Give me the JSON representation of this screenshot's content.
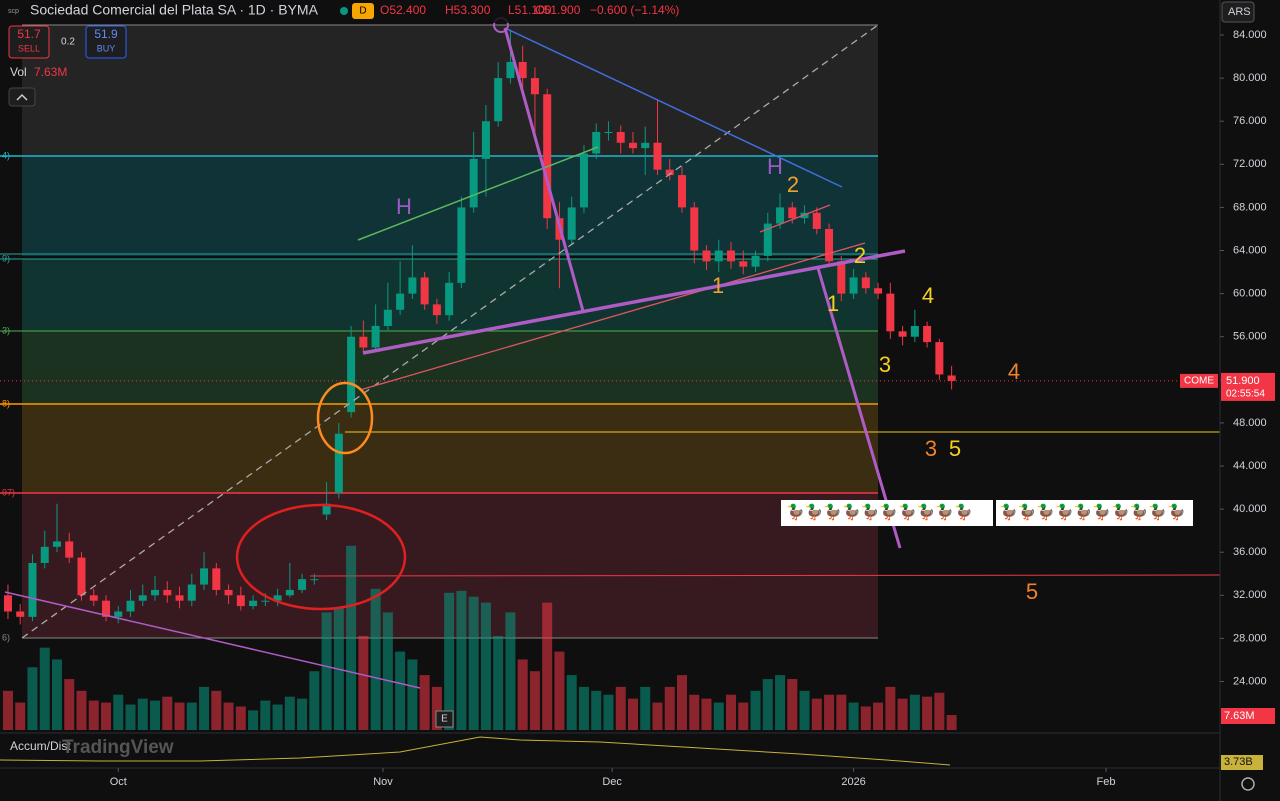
{
  "chart_data": {
    "type": "candlestick",
    "title": "Sociedad Comercial del Plata SA · 1D · BYMA",
    "ohlc_header": [
      "O52.400",
      "H53.300",
      "L51.100",
      "C51.900",
      "−0.600 (−1.14%)"
    ],
    "sell": {
      "price": "51.7",
      "label": "SELL"
    },
    "spread": "0.2",
    "buy": {
      "price": "51.9",
      "label": "BUY"
    },
    "volume_label": "Vol",
    "volume_value": "7.63M",
    "currency": "ARS",
    "last_price": {
      "symbol": "COME",
      "price": "51.900",
      "countdown": "02:55:54"
    },
    "volume_axis_label": "7.63M",
    "indicator": {
      "name": "Accum/Dist",
      "value": "3.73B"
    },
    "watermark": "TradingView",
    "up_color": "#089981",
    "down_color": "#f23645",
    "open": [
      32,
      30.5,
      30,
      35,
      36.5,
      37,
      35.5,
      32,
      31.5,
      30,
      30.5,
      31.5,
      32,
      32.5,
      32,
      31.5,
      33,
      34.5,
      32.5,
      32,
      31,
      31.5,
      31.5,
      32,
      32.5,
      33.5,
      39.5,
      41.5,
      49,
      56,
      55,
      57,
      58.5,
      60,
      61.5,
      59,
      58,
      61,
      68,
      72.5,
      76,
      80,
      81.5,
      80,
      78.5,
      67,
      65,
      68,
      73,
      75,
      75,
      74,
      73.5,
      74,
      71.5,
      71,
      68,
      64,
      63,
      64,
      63,
      62.5,
      63.5,
      66.5,
      68,
      67,
      67.5,
      66,
      63,
      60,
      61.5,
      60.5,
      60,
      56.5,
      56,
      57,
      55.5,
      52.4
    ],
    "high": [
      33,
      31.2,
      35.8,
      38,
      40.5,
      37.8,
      36,
      32.6,
      32,
      31,
      32.5,
      33,
      33.8,
      33.3,
      32.8,
      34,
      36,
      35,
      33,
      32.8,
      32,
      32.2,
      32.6,
      35,
      34,
      34,
      42.5,
      48,
      57,
      57.5,
      59,
      61,
      63,
      64.5,
      62,
      59.5,
      62,
      69,
      75,
      77.5,
      81.5,
      84.5,
      83,
      81,
      79,
      68.5,
      69,
      73.8,
      75.8,
      76,
      75.6,
      75,
      75.5,
      78,
      72.5,
      71.8,
      68.5,
      64.5,
      65,
      64.8,
      64,
      64,
      67.5,
      69.3,
      68.5,
      68.2,
      68,
      66.5,
      63.5,
      62.3,
      62,
      61,
      61,
      57,
      58.5,
      57.4,
      55.8,
      53.3
    ],
    "low": [
      29.8,
      29.3,
      29.6,
      34.5,
      36,
      35,
      31.5,
      31,
      29.6,
      29.4,
      30,
      31,
      31.5,
      31.3,
      30.8,
      31,
      32.5,
      32,
      31.2,
      30.6,
      30.7,
      31,
      31,
      31.8,
      32.2,
      33,
      39,
      41,
      48.5,
      54.5,
      54.8,
      56.5,
      58,
      59.5,
      58.5,
      57.2,
      57.5,
      60.5,
      67.5,
      69,
      75.5,
      79.5,
      79,
      75,
      66,
      60.5,
      64.5,
      67.5,
      72.5,
      74.2,
      73,
      73,
      71,
      71,
      70.5,
      67.5,
      62.8,
      62.2,
      62,
      62.3,
      61.8,
      62,
      63,
      66,
      66.5,
      66.5,
      65.5,
      62.5,
      59.3,
      59.5,
      60,
      59.5,
      55.8,
      55.2,
      55.5,
      55,
      52,
      51.1
    ],
    "close": [
      30.5,
      30,
      35,
      36.5,
      37,
      35.5,
      32,
      31.5,
      30,
      30.5,
      31.5,
      32,
      32.5,
      32,
      31.5,
      33,
      34.5,
      32.5,
      32,
      31,
      31.5,
      31.5,
      32,
      32.5,
      33.5,
      33.5,
      40.5,
      47,
      56,
      55,
      57,
      58.5,
      60,
      61.5,
      59,
      58,
      61,
      68,
      72.5,
      76,
      80,
      81.5,
      80,
      78.5,
      67,
      65,
      68,
      73,
      75,
      75,
      74,
      73.5,
      74,
      71.5,
      71,
      68,
      64,
      63,
      64,
      63,
      62.5,
      63.5,
      66.5,
      68,
      67,
      67.5,
      66,
      63,
      60,
      61.5,
      60.5,
      60,
      56.5,
      56,
      57,
      55.5,
      52.5,
      51.9
    ],
    "volume": [
      20,
      14,
      32,
      42,
      36,
      26,
      20,
      15,
      14,
      18,
      13,
      16,
      15,
      17,
      14,
      14,
      22,
      20,
      14,
      12,
      10,
      15,
      13,
      17,
      16,
      30,
      60,
      62,
      94,
      48,
      72,
      60,
      40,
      36,
      28,
      22,
      70,
      71,
      68,
      65,
      48,
      60,
      36,
      30,
      65,
      40,
      28,
      22,
      20,
      18,
      22,
      16,
      22,
      14,
      22,
      28,
      18,
      16,
      14,
      18,
      14,
      20,
      26,
      28,
      26,
      20,
      16,
      18,
      18,
      14,
      12,
      14,
      22,
      16,
      18,
      17,
      19,
      7.63
    ],
    "ylim": [
      19.5,
      87.25
    ],
    "yticks": [
      {
        "value": 24,
        "label": "24.000"
      },
      {
        "value": 28,
        "label": "28.000"
      },
      {
        "value": 32,
        "label": "32.000"
      },
      {
        "value": 36,
        "label": "36.000"
      },
      {
        "value": 40,
        "label": "40.000"
      },
      {
        "value": 44,
        "label": "44.000"
      },
      {
        "value": 48,
        "label": "48.000"
      },
      {
        "value": 52,
        "label": "52.000"
      },
      {
        "value": 56,
        "label": "56.000"
      },
      {
        "value": 60,
        "label": "60.000"
      },
      {
        "value": 64,
        "label": "64.000"
      },
      {
        "value": 68,
        "label": "68.000"
      },
      {
        "value": 72,
        "label": "72.000"
      },
      {
        "value": 76,
        "label": "76.000"
      },
      {
        "value": 80,
        "label": "80.000"
      },
      {
        "value": 84,
        "label": "84.000"
      }
    ],
    "xlim": [
      -0.65,
      98.9
    ],
    "xticks": [
      {
        "value": 9,
        "label": "Oct"
      },
      {
        "value": 30.6,
        "label": "Nov"
      },
      {
        "value": 49.3,
        "label": "Dec"
      },
      {
        "value": 69,
        "label": "2026"
      },
      {
        "value": 89.6,
        "label": "Feb"
      }
    ],
    "annotations": [
      "H",
      "H",
      "2",
      "2",
      "1",
      "1",
      "4",
      "3",
      "4",
      "3",
      "5",
      "5"
    ],
    "emoji_strip": [
      "🦆🦆🦆🦆🦆🦆🦆🦆🦆🦆",
      "🦆🦆🦆🦆🦆🦆🦆🦆🦆🦆"
    ]
  }
}
